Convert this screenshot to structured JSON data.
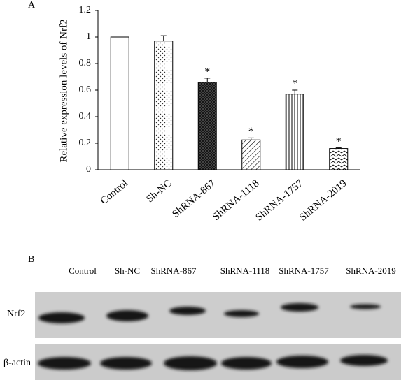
{
  "chart_data": {
    "type": "bar",
    "panel_label": "A",
    "y_label": "Relative expression levels of Nrf2",
    "categories": [
      "Control",
      "Sh-NC",
      "ShRNA-867",
      "ShRNA-1118",
      "ShRNA-1757",
      "ShRNA-2019"
    ],
    "values": [
      1,
      0.97,
      0.66,
      0.225,
      0.57,
      0.16
    ],
    "errors": [
      0,
      0.04,
      0.03,
      0.015,
      0.03,
      0.005
    ],
    "significance": [
      null,
      null,
      "*",
      "*",
      "*",
      "*"
    ],
    "ylim": [
      0,
      1.2
    ],
    "yticks": [
      0,
      0.2,
      0.4,
      0.6,
      0.8,
      1,
      1.2
    ],
    "grid": false
  },
  "blot": {
    "panel_label": "B",
    "lanes": [
      "Control",
      "Sh-NC",
      "ShRNA-867",
      "ShRNA-1118",
      "ShRNA-1757",
      "ShRNA-2019"
    ],
    "rows": [
      "Nrf2",
      "β-actin"
    ]
  }
}
